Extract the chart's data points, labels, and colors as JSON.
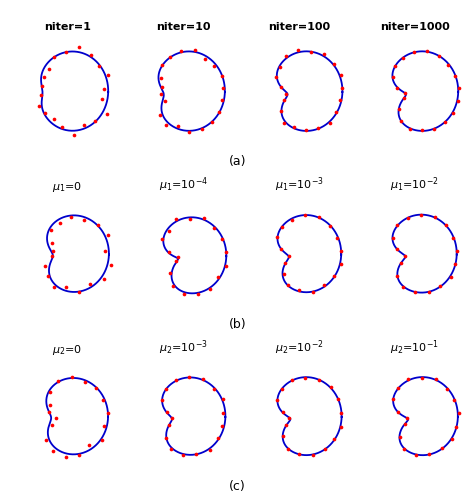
{
  "row_labels_a": [
    "niter=1",
    "niter=10",
    "niter=100",
    "niter=1000"
  ],
  "row_labels_b": [
    "$\\boldsymbol{\\mu_1}$=0",
    "$\\boldsymbol{\\mu_1}$=10$^{-4}$",
    "$\\boldsymbol{\\mu_1}$=10$^{-3}$",
    "$\\boldsymbol{\\mu_1}$=10$^{-2}$"
  ],
  "row_labels_c": [
    "$\\boldsymbol{\\mu_2}$=0",
    "$\\boldsymbol{\\mu_2}$=10$^{-3}$",
    "$\\boldsymbol{\\mu_2}$=10$^{-2}$",
    "$\\boldsymbol{\\mu_2}$=10$^{-1}$"
  ],
  "subfig_labels": [
    "(a)",
    "(b)",
    "(c)"
  ],
  "curve_color": "#0000CC",
  "dot_color": "#FF0000",
  "background_color": "#FFFFFF"
}
